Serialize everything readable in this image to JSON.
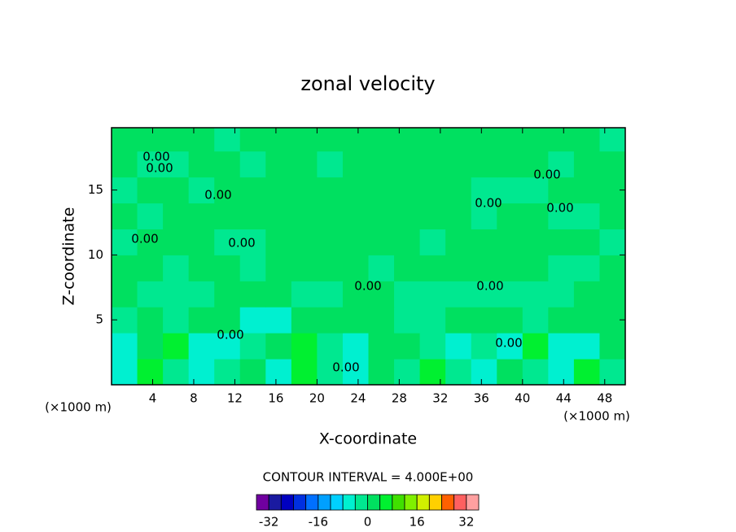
{
  "chart_data": {
    "type": "contour",
    "title": "zonal velocity",
    "x_label": "X-coordinate",
    "y_label": "Z-coordinate",
    "x_unit_label": "(×1000 m)",
    "y_unit_label": "(×1000 m)",
    "xlim": [
      0,
      50
    ],
    "ylim": [
      0,
      19.8
    ],
    "xticks": [
      4,
      8,
      12,
      16,
      20,
      24,
      28,
      32,
      36,
      40,
      44,
      48
    ],
    "yticks": [
      5,
      10,
      15
    ],
    "x": [
      1.25,
      3.75,
      6.25,
      8.75,
      11.25,
      13.75,
      16.25,
      18.75,
      21.25,
      23.75,
      26.25,
      28.75,
      31.25,
      33.75,
      36.25,
      38.75,
      41.25,
      43.75,
      46.25,
      48.75
    ],
    "y": [
      1,
      3,
      5,
      7,
      9,
      11,
      13,
      15,
      17,
      19
    ],
    "values": [
      [
        -5,
        6,
        -2,
        -6,
        -2,
        3,
        -5,
        6,
        -2,
        -5,
        3,
        -2,
        6,
        -2,
        -5,
        2,
        -3,
        -5,
        7,
        -3
      ],
      [
        -6,
        2,
        5,
        -6,
        -7,
        -2,
        2,
        6,
        -3,
        -6,
        2,
        1,
        -3,
        -6,
        -2,
        -6,
        5,
        -6,
        -7,
        2
      ],
      [
        -2,
        3,
        -2,
        2,
        3,
        -6,
        -6,
        2,
        1,
        2,
        3,
        -2,
        -2,
        2,
        3,
        2,
        -2,
        2,
        3,
        2
      ],
      [
        2,
        -2,
        -3,
        -2,
        2,
        2,
        2,
        -2,
        -2,
        2,
        2,
        -2,
        -2,
        -2,
        -3,
        -2,
        -2,
        -2,
        2,
        2
      ],
      [
        2,
        2,
        -2,
        2,
        2,
        -2,
        2,
        2,
        1,
        2,
        -2,
        2,
        2,
        2,
        2,
        2,
        2,
        -2,
        -2,
        2
      ],
      [
        -2,
        2,
        2,
        2,
        -2,
        -2,
        2,
        2,
        2,
        2,
        2,
        2,
        -2,
        2,
        2,
        2,
        2,
        2,
        2,
        -2
      ],
      [
        2,
        -2,
        2,
        2,
        2,
        2,
        2,
        1,
        2,
        2,
        2,
        2,
        2,
        2,
        -2,
        2,
        2,
        -2,
        -2,
        2
      ],
      [
        -2,
        2,
        2,
        -2,
        2,
        2,
        2,
        2,
        2,
        2,
        2,
        2,
        2,
        2,
        -2,
        -2,
        -2,
        2,
        2,
        2
      ],
      [
        2,
        -2,
        -2,
        2,
        2,
        -2,
        2,
        2,
        -2,
        2,
        2,
        2,
        2,
        2,
        2,
        2,
        2,
        -2,
        2,
        2
      ],
      [
        2,
        2,
        2,
        2,
        -2,
        2,
        2,
        2,
        2,
        2,
        2,
        2,
        2,
        2,
        2,
        2,
        2,
        2,
        2,
        -2
      ]
    ],
    "contour_labels": [
      "0.00",
      "0.00",
      "0.00",
      "0.00",
      "0.00",
      "0.00",
      "0.00",
      "0.00",
      "0.00",
      "0.00",
      "0.00",
      "0.00",
      "0.00"
    ],
    "contour_interval_label": "CONTOUR INTERVAL = 4.000E+00",
    "colorbar_lim": [
      -36,
      36
    ],
    "colorbar_ticks": [
      -32,
      -16,
      0,
      16,
      32
    ],
    "colors": [
      "#7000a0",
      "#1a1aa0",
      "#0000c0",
      "#0030e0",
      "#0070ff",
      "#00a0ff",
      "#00d0ff",
      "#00f0d0",
      "#00e890",
      "#00e060",
      "#00f030",
      "#40e000",
      "#80f000",
      "#d0f000",
      "#ffd000",
      "#ff6000",
      "#ff6060",
      "#ffa0a0"
    ]
  }
}
